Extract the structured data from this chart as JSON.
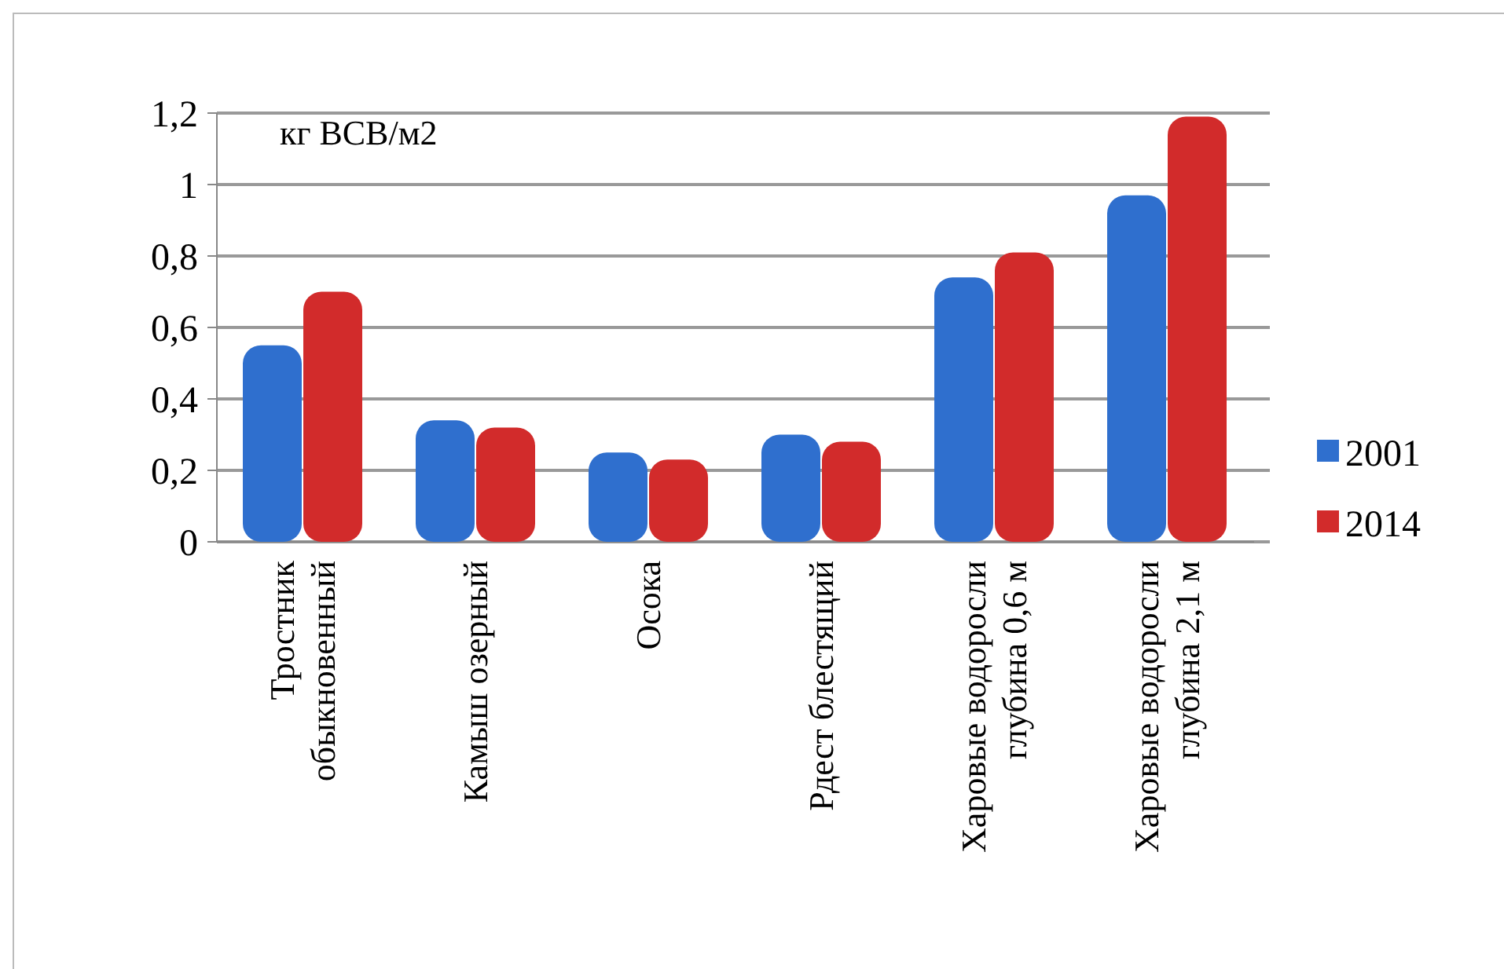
{
  "chart_data": {
    "type": "bar",
    "ylabel": "кг ВСВ/м2",
    "categories": [
      "Тростник обыкновенный",
      "Камыш озерный",
      "Осока",
      "Рдест блестящий",
      "Харовые водоросли глубина 0,6 м",
      "Харовые водоросли глубина 2,1 м"
    ],
    "series": [
      {
        "name": "2001",
        "color": "#2f6fce",
        "values": [
          0.55,
          0.34,
          0.25,
          0.3,
          0.74,
          0.97
        ]
      },
      {
        "name": "2014",
        "color": "#d22b2b",
        "values": [
          0.7,
          0.32,
          0.23,
          0.28,
          0.81,
          1.19
        ]
      }
    ],
    "ylim": [
      0,
      1.2
    ],
    "yticks": [
      0,
      {
        "value": 0.2,
        "label": "0,2"
      },
      {
        "value": 0.4,
        "label": "0,4"
      },
      {
        "value": 0.6,
        "label": "0,6"
      },
      {
        "value": 0.8,
        "label": "0,8"
      },
      1,
      {
        "value": 1.2,
        "label": "1,2"
      }
    ],
    "grid": "y",
    "legend": "right"
  }
}
